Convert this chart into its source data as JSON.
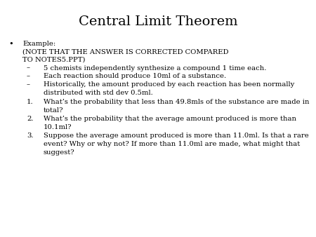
{
  "title": "Central Limit Theorem",
  "background_color": "#ffffff",
  "title_fontsize": 14,
  "text_fontsize": 7.2,
  "title_font": "DejaVu Serif",
  "body_font": "DejaVu Serif",
  "bullet_label_line1": "Example:",
  "bullet_label_line2": "(NOTE THAT THE ANSWER IS CORRECTED COMPARED",
  "bullet_label_line3": "TO NOTES5.PPT)",
  "sub_bullets": [
    "5 chemists independently synthesize a compound 1 time each.",
    "Each reaction should produce 10ml of a substance.",
    "Historically, the amount produced by each reaction has been normally\ndistributed with std dev 0.5ml."
  ],
  "numbered": [
    "What’s the probability that less than 49.8mls of the substance are made in\ntotal?",
    "What’s the probability that the average amount produced is more than\n10.1ml?",
    "Suppose the average amount produced is more than 11.0ml. Is that a rare\nevent? Why or why not? If more than 11.0ml are made, what might that\nsuggest?"
  ]
}
